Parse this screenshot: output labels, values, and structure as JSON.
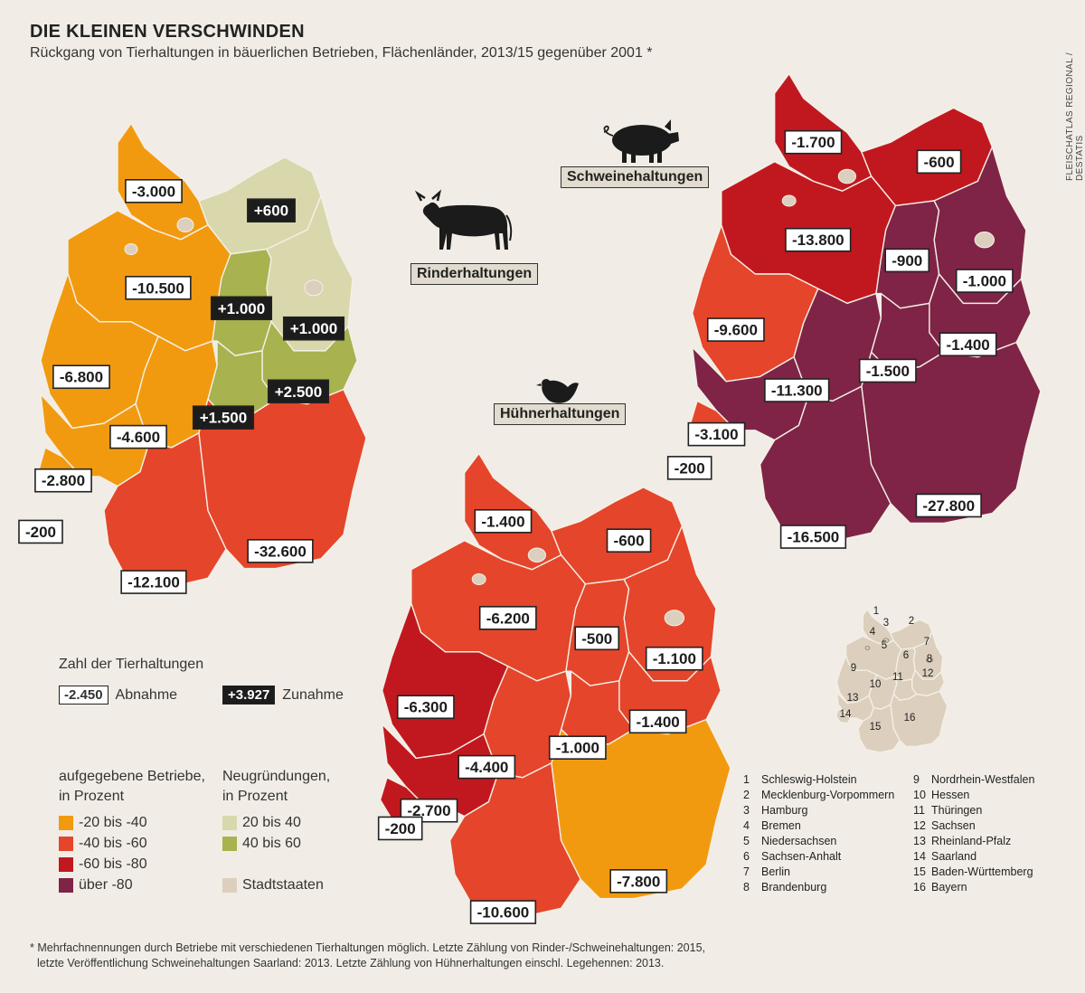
{
  "title": "DIE KLEINEN VERSCHWINDEN",
  "subtitle": "Rückgang von Tierhaltungen in bäuerlichen Betrieben, Flächenländer, 2013/15 gegenüber 2001 *",
  "credit": "FLEISCHATLAS REGIONAL / DESTATIS",
  "colors": {
    "orange": "#f29a0f",
    "red_orange": "#e5452a",
    "dark_red": "#c1181f",
    "purple": "#7f2446",
    "light_green": "#d9d8ac",
    "green": "#a8b24e",
    "city": "#dccfbe",
    "background": "#f1ede6"
  },
  "maps": {
    "rinder": {
      "label": "Rinderhaltungen",
      "icon": "cow-icon",
      "values": [
        {
          "state": "Schleswig-Holstein",
          "value": "-3.000",
          "category": "orange"
        },
        {
          "state": "Mecklenburg-Vorpommern",
          "value": "+600",
          "category": "light_green"
        },
        {
          "state": "Niedersachsen",
          "value": "-10.500",
          "category": "orange"
        },
        {
          "state": "Sachsen-Anhalt",
          "value": "+1.000",
          "category": "green"
        },
        {
          "state": "Brandenburg",
          "value": "+1.000",
          "category": "light_green"
        },
        {
          "state": "Nordrhein-Westfalen",
          "value": "-6.800",
          "category": "orange"
        },
        {
          "state": "Sachsen",
          "value": "+2.500",
          "category": "green"
        },
        {
          "state": "Thüringen",
          "value": "+1.500",
          "category": "green"
        },
        {
          "state": "Hessen",
          "value": "-4.600",
          "category": "orange"
        },
        {
          "state": "Rheinland-Pfalz",
          "value": "-2.800",
          "category": "orange"
        },
        {
          "state": "Saarland",
          "value": "-200",
          "category": "orange"
        },
        {
          "state": "Baden-Württemberg",
          "value": "-12.100",
          "category": "red_orange"
        },
        {
          "state": "Bayern",
          "value": "-32.600",
          "category": "red_orange"
        }
      ]
    },
    "schweine": {
      "label": "Schweinehaltungen",
      "icon": "pig-icon",
      "values": [
        {
          "state": "Schleswig-Holstein",
          "value": "-1.700",
          "category": "dark_red"
        },
        {
          "state": "Mecklenburg-Vorpommern",
          "value": "-600",
          "category": "dark_red"
        },
        {
          "state": "Niedersachsen",
          "value": "-13.800",
          "category": "dark_red"
        },
        {
          "state": "Sachsen-Anhalt",
          "value": "-900",
          "category": "purple"
        },
        {
          "state": "Brandenburg",
          "value": "-1.000",
          "category": "purple"
        },
        {
          "state": "Nordrhein-Westfalen",
          "value": "-9.600",
          "category": "red_orange"
        },
        {
          "state": "Sachsen",
          "value": "-1.400",
          "category": "purple"
        },
        {
          "state": "Thüringen",
          "value": "-1.500",
          "category": "purple"
        },
        {
          "state": "Hessen",
          "value": "-11.300",
          "category": "purple"
        },
        {
          "state": "Rheinland-Pfalz",
          "value": "-3.100",
          "category": "purple"
        },
        {
          "state": "Saarland",
          "value": "-200",
          "category": "red_orange"
        },
        {
          "state": "Baden-Württemberg",
          "value": "-16.500",
          "category": "purple"
        },
        {
          "state": "Bayern",
          "value": "-27.800",
          "category": "purple"
        }
      ]
    },
    "huehner": {
      "label": "Hühnerhaltungen",
      "icon": "chicken-icon",
      "values": [
        {
          "state": "Schleswig-Holstein",
          "value": "-1.400",
          "category": "red_orange"
        },
        {
          "state": "Mecklenburg-Vorpommern",
          "value": "-600",
          "category": "red_orange"
        },
        {
          "state": "Niedersachsen",
          "value": "-6.200",
          "category": "red_orange"
        },
        {
          "state": "Sachsen-Anhalt",
          "value": "-500",
          "category": "red_orange"
        },
        {
          "state": "Brandenburg",
          "value": "-1.100",
          "category": "red_orange"
        },
        {
          "state": "Nordrhein-Westfalen",
          "value": "-6.300",
          "category": "dark_red"
        },
        {
          "state": "Sachsen",
          "value": "-1.400",
          "category": "red_orange"
        },
        {
          "state": "Thüringen",
          "value": "-1.000",
          "category": "red_orange"
        },
        {
          "state": "Hessen",
          "value": "-4.400",
          "category": "red_orange"
        },
        {
          "state": "Rheinland-Pfalz",
          "value": "-2.700",
          "category": "dark_red"
        },
        {
          "state": "Saarland",
          "value": "-200",
          "category": "dark_red"
        },
        {
          "state": "Baden-Württemberg",
          "value": "-10.600",
          "category": "red_orange"
        },
        {
          "state": "Bayern",
          "value": "-7.800",
          "category": "orange"
        }
      ]
    }
  },
  "legend": {
    "count_title": "Zahl der Tierhaltungen",
    "decrease_example": "-2.450",
    "decrease_label": "Abnahme",
    "increase_example": "+3.927",
    "increase_label": "Zunahme",
    "loss_title_1": "aufgegebene Betriebe,",
    "loss_title_2": "in Prozent",
    "loss_items": [
      {
        "label": "-20 bis -40",
        "color": "orange"
      },
      {
        "label": "-40 bis -60",
        "color": "red_orange"
      },
      {
        "label": "-60 bis -80",
        "color": "dark_red"
      },
      {
        "label": "über -80",
        "color": "purple"
      }
    ],
    "gain_title_1": "Neugründungen,",
    "gain_title_2": "in Prozent",
    "gain_items": [
      {
        "label": "20 bis 40",
        "color": "light_green"
      },
      {
        "label": "40 bis 60",
        "color": "green"
      }
    ],
    "city_label": "Stadtstaaten"
  },
  "state_list_left": [
    {
      "n": "1",
      "name": "Schleswig-Holstein"
    },
    {
      "n": "2",
      "name": "Mecklenburg-Vorpommern"
    },
    {
      "n": "3",
      "name": "Hamburg"
    },
    {
      "n": "4",
      "name": "Bremen"
    },
    {
      "n": "5",
      "name": "Niedersachsen"
    },
    {
      "n": "6",
      "name": "Sachsen-Anhalt"
    },
    {
      "n": "7",
      "name": "Berlin"
    },
    {
      "n": "8",
      "name": "Brandenburg"
    }
  ],
  "state_list_right": [
    {
      "n": "9",
      "name": "Nordrhein-Westfalen"
    },
    {
      "n": "10",
      "name": "Hessen"
    },
    {
      "n": "11",
      "name": "Thüringen"
    },
    {
      "n": "12",
      "name": "Sachsen"
    },
    {
      "n": "13",
      "name": "Rheinland-Pfalz"
    },
    {
      "n": "14",
      "name": "Saarland"
    },
    {
      "n": "15",
      "name": "Baden-Württemberg"
    },
    {
      "n": "16",
      "name": "Bayern"
    }
  ],
  "footnote_1": "* Mehrfachnennungen durch Betriebe mit verschiedenen Tierhaltungen möglich. Letzte Zählung von Rinder-/Schweinehaltungen: 2015,",
  "footnote_2": "letzte Veröffentlichung Schweinehaltungen Saarland: 2013. Letzte Zählung von Hühnerhaltungen einschl. Legehennen: 2013."
}
